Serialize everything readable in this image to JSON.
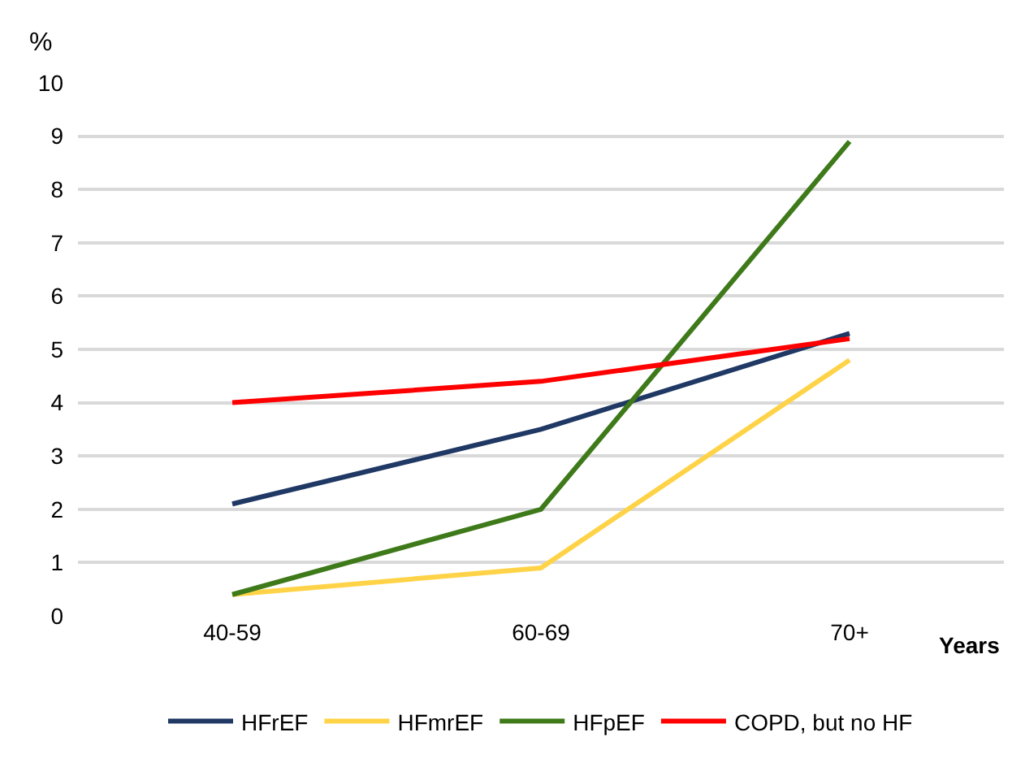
{
  "chart_data": {
    "type": "line",
    "xlabel": "Years",
    "ylabel": "%",
    "categories": [
      "40-59",
      "60-69",
      "70+"
    ],
    "series": [
      {
        "name": "HFrEF",
        "color": "#1f3864",
        "values": [
          2.1,
          3.5,
          5.3
        ]
      },
      {
        "name": "HFmrEF",
        "color": "#ffd347",
        "values": [
          0.4,
          0.9,
          4.8
        ]
      },
      {
        "name": "HFpEF",
        "color": "#3f7a1a",
        "values": [
          0.4,
          2.0,
          8.9
        ]
      },
      {
        "name": "COPD, but no HF",
        "color": "#ff0000",
        "values": [
          4.0,
          4.4,
          5.2
        ]
      }
    ],
    "ylim": [
      0,
      10
    ],
    "yticks": [
      0,
      1,
      2,
      3,
      4,
      5,
      6,
      7,
      8,
      9,
      10
    ],
    "grid": "y",
    "legend": "bottom",
    "marker": "none",
    "line_style": "solid"
  }
}
